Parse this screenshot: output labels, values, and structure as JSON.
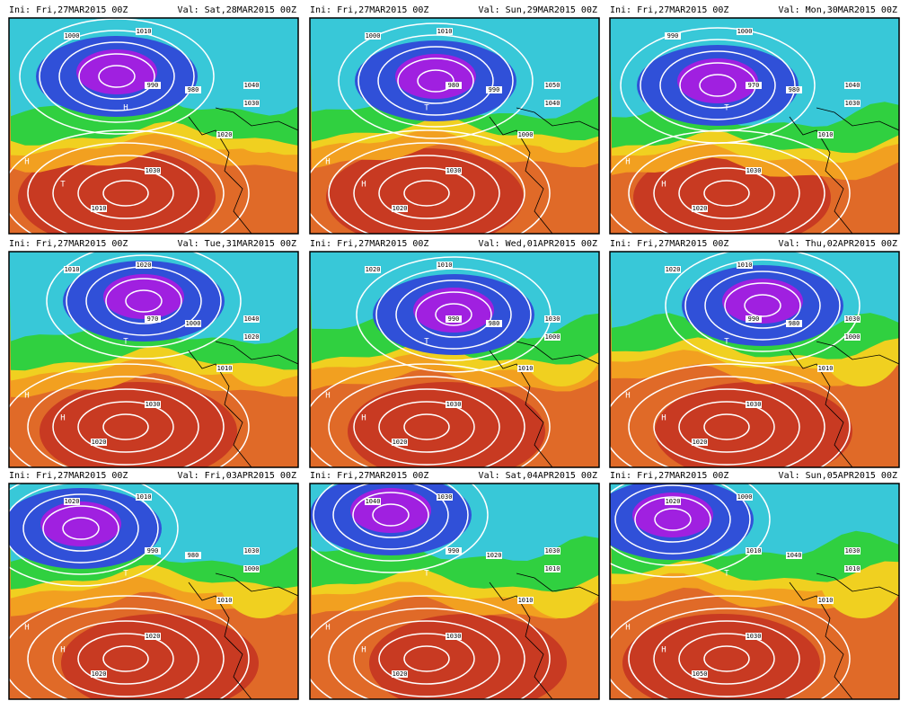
{
  "panels": [
    {
      "ini": "Ini: Fri,27MAR2015 00Z",
      "val": "Val: Sat,28MAR2015 00Z",
      "labels": [
        "1000",
        "1010",
        "990",
        "980",
        "1040",
        "1030",
        "1020",
        "1030",
        "1010",
        "H",
        "T",
        "H"
      ]
    },
    {
      "ini": "Ini: Fri,27MAR2015 00Z",
      "val": "Val: Sun,29MAR2015 00Z",
      "labels": [
        "1000",
        "1010",
        "980",
        "990",
        "1050",
        "1040",
        "1000",
        "1030",
        "1020",
        "H",
        "H",
        "T"
      ]
    },
    {
      "ini": "Ini: Fri,27MAR2015 00Z",
      "val": "Val: Mon,30MAR2015 00Z",
      "labels": [
        "990",
        "1000",
        "970",
        "980",
        "1040",
        "1030",
        "1010",
        "1030",
        "1020",
        "H",
        "H",
        "T"
      ]
    },
    {
      "ini": "Ini: Fri,27MAR2015 00Z",
      "val": "Val: Tue,31MAR2015 00Z",
      "labels": [
        "1010",
        "1020",
        "970",
        "1000",
        "1040",
        "1020",
        "1010",
        "1030",
        "1020",
        "H",
        "H",
        "T"
      ]
    },
    {
      "ini": "Ini: Fri,27MAR2015 00Z",
      "val": "Val: Wed,01APR2015 00Z",
      "labels": [
        "1020",
        "1010",
        "990",
        "980",
        "1030",
        "1000",
        "1010",
        "1030",
        "1020",
        "H",
        "H",
        "T"
      ]
    },
    {
      "ini": "Ini: Fri,27MAR2015 00Z",
      "val": "Val: Thu,02APR2015 00Z",
      "labels": [
        "1020",
        "1010",
        "990",
        "980",
        "1030",
        "1000",
        "1010",
        "1030",
        "1020",
        "H",
        "H",
        "T"
      ]
    },
    {
      "ini": "Ini: Fri,27MAR2015 00Z",
      "val": "Val: Fri,03APR2015 00Z",
      "labels": [
        "1020",
        "1010",
        "990",
        "980",
        "1030",
        "1000",
        "1010",
        "1020",
        "1020",
        "H",
        "H",
        "T"
      ]
    },
    {
      "ini": "Ini: Fri,27MAR2015 00Z",
      "val": "Val: Sat,04APR2015 00Z",
      "labels": [
        "1040",
        "1030",
        "990",
        "1020",
        "1030",
        "1010",
        "1010",
        "1030",
        "1020",
        "H",
        "H",
        "T"
      ]
    },
    {
      "ini": "Ini: Fri,27MAR2015 00Z",
      "val": "Val: Sun,05APR2015 00Z",
      "labels": [
        "1020",
        "1000",
        "1010",
        "1040",
        "1030",
        "1010",
        "1010",
        "1030",
        "1050",
        "H",
        "H",
        "T"
      ]
    }
  ]
}
